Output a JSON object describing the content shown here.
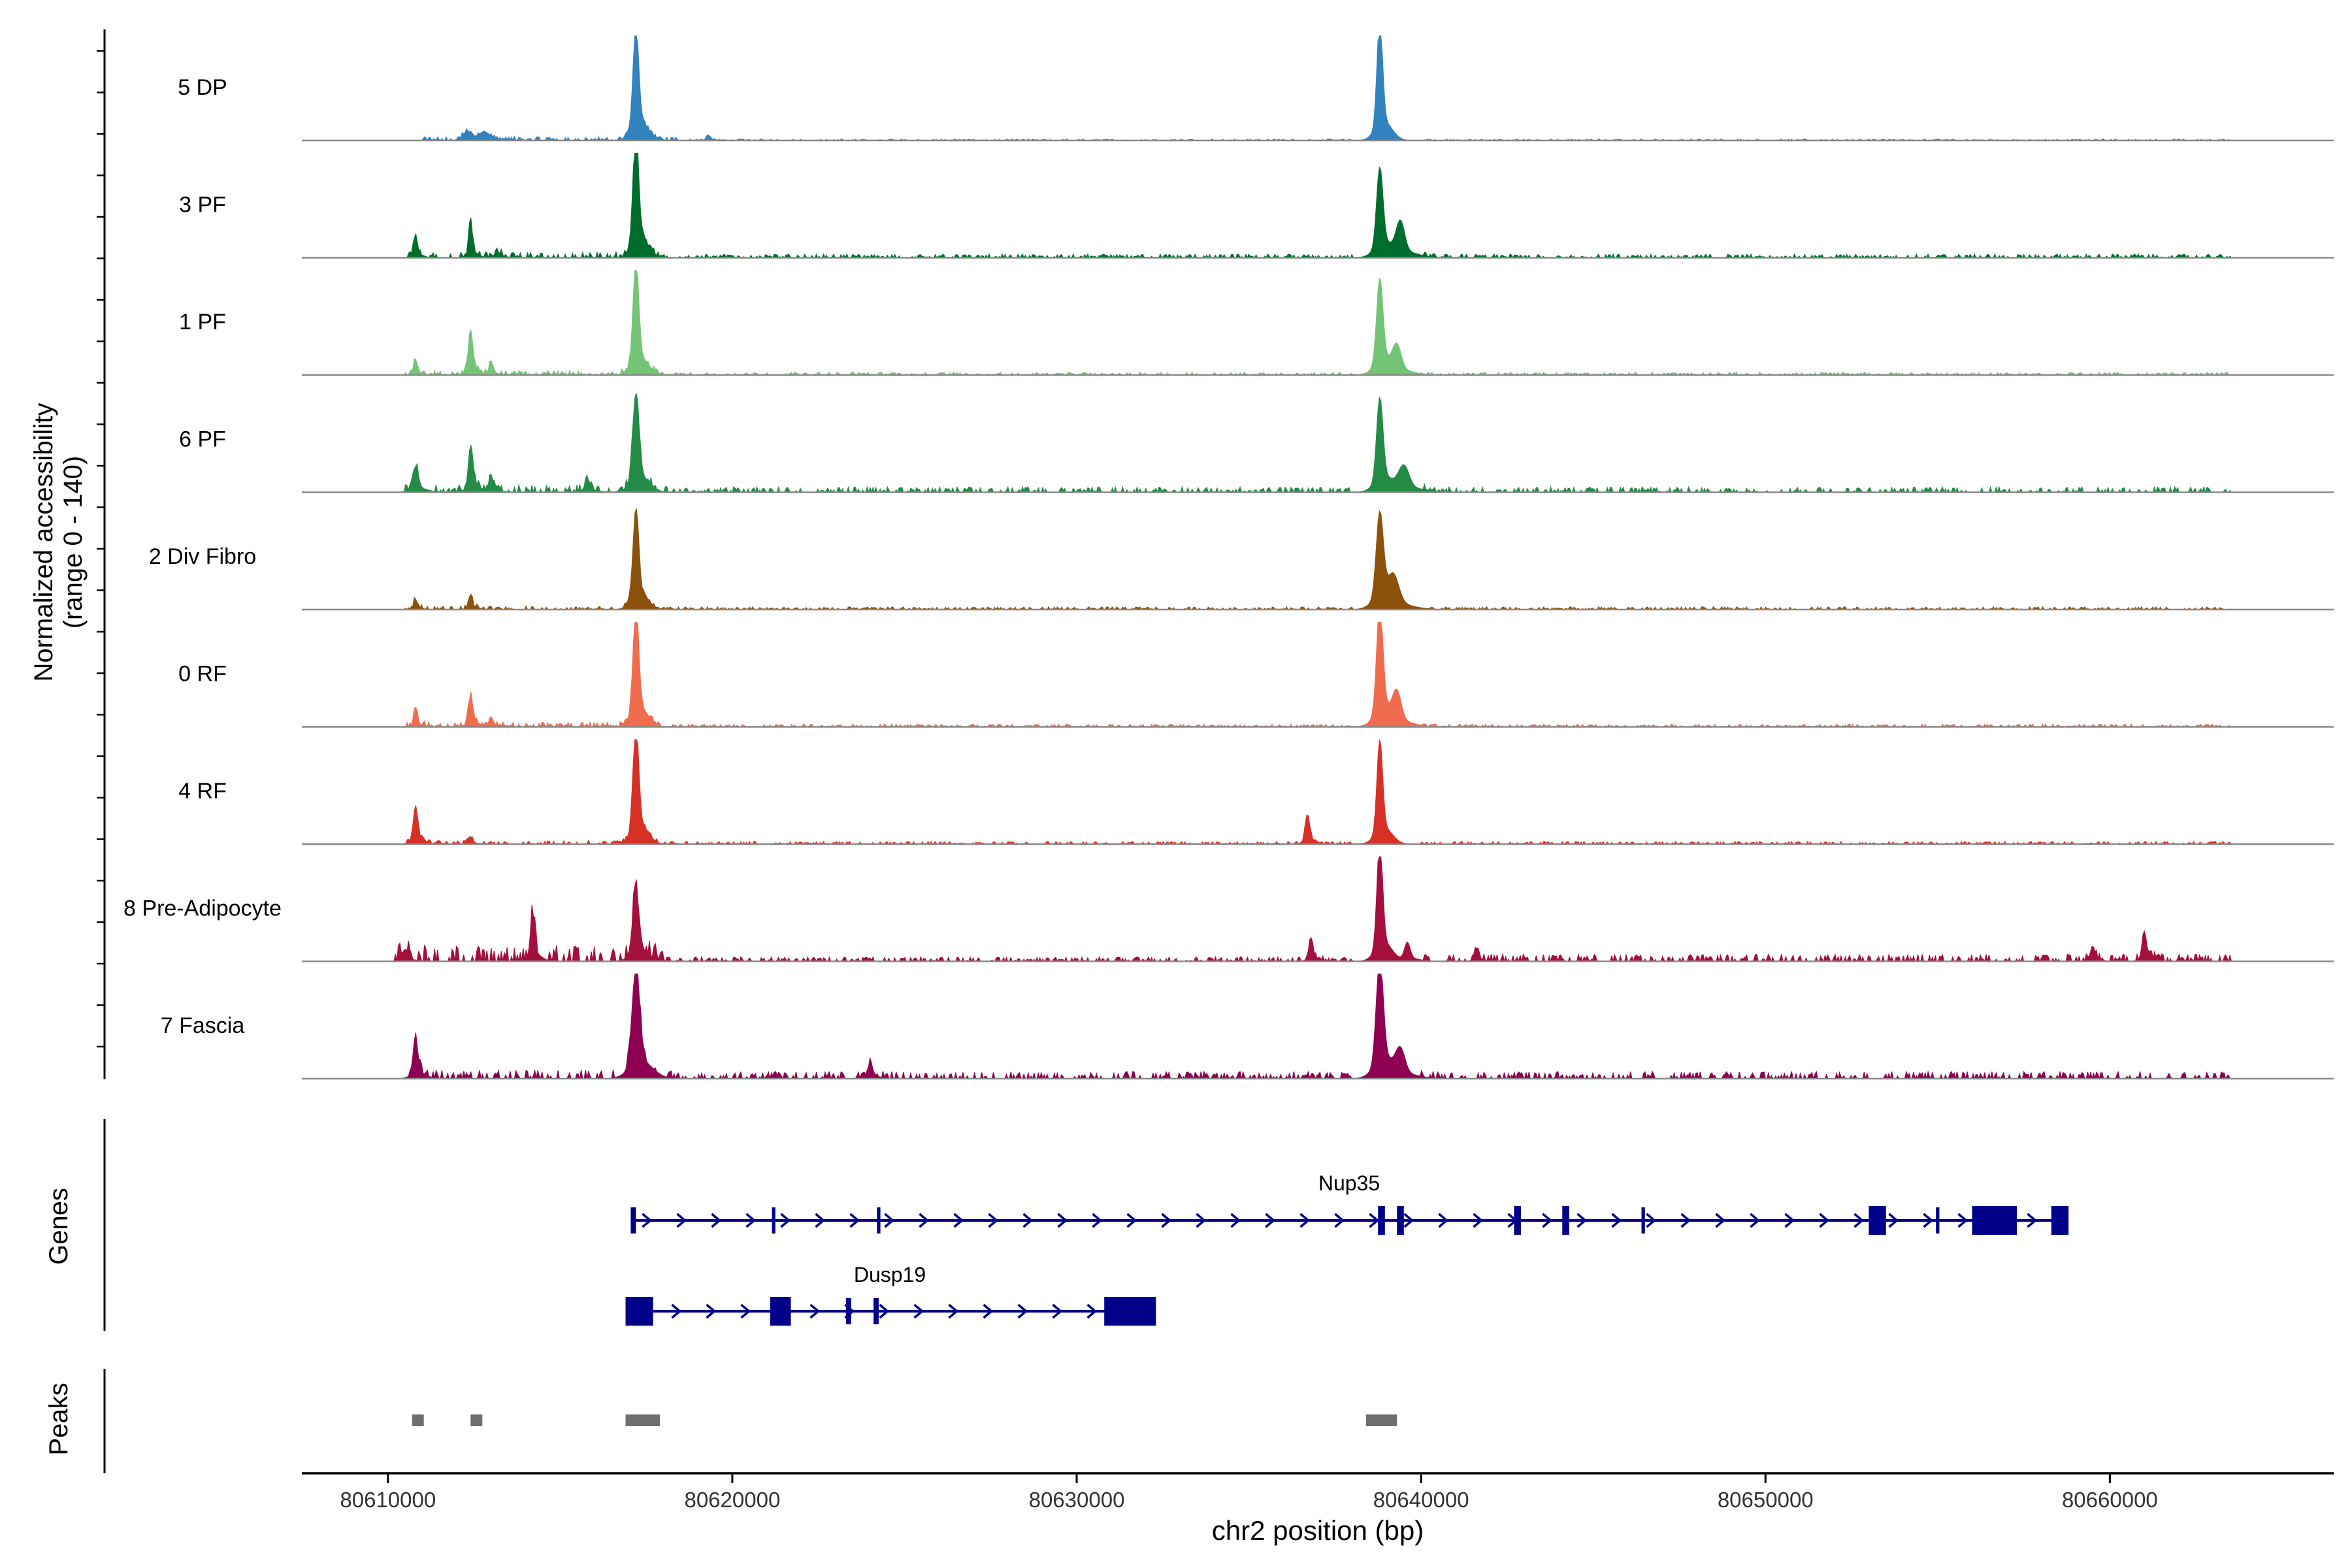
{
  "chart_data": {
    "type": "area",
    "title": "",
    "xlabel": "chr2 position (bp)",
    "ylabel_line1": "Normalized accessibility",
    "ylabel_line2": "(range 0 - 140)",
    "yrange": [
      0,
      140
    ],
    "xlim": [
      80607500,
      80666500
    ],
    "xticks": [
      80610000,
      80620000,
      80630000,
      80640000,
      80650000,
      80660000
    ],
    "xtick_labels": [
      "80610000",
      "80620000",
      "80630000",
      "80640000",
      "80650000",
      "80660000"
    ],
    "tracks": [
      {
        "name": "5 DP",
        "color": "#3182bd",
        "peaks": [
          [
            80612300,
            10,
            120
          ],
          [
            80612800,
            9,
            150
          ],
          [
            80617200,
            135,
            80
          ],
          [
            80619300,
            6,
            50
          ],
          [
            80638800,
            140,
            80
          ]
        ],
        "scatter": [
          [
            80611000,
            80618500,
            4
          ],
          [
            80618500,
            80638000,
            1.5
          ],
          [
            80640000,
            80663500,
            1.5
          ]
        ]
      },
      {
        "name": "3 PF",
        "color": "#006d2c",
        "peaks": [
          [
            80610800,
            28,
            50
          ],
          [
            80612400,
            42,
            50
          ],
          [
            80613200,
            6,
            100
          ],
          [
            80617200,
            145,
            80
          ],
          [
            80638800,
            105,
            90
          ],
          [
            80639400,
            40,
            120
          ]
        ],
        "scatter": [
          [
            80610500,
            80618000,
            6
          ],
          [
            80618000,
            80638000,
            4
          ],
          [
            80640000,
            80663500,
            4
          ]
        ]
      },
      {
        "name": "1 PF",
        "color": "#74c476",
        "peaks": [
          [
            80610800,
            18,
            50
          ],
          [
            80612400,
            52,
            60
          ],
          [
            80613000,
            14,
            60
          ],
          [
            80617200,
            132,
            80
          ],
          [
            80638800,
            112,
            90
          ],
          [
            80639300,
            30,
            120
          ]
        ],
        "scatter": [
          [
            80610500,
            80618000,
            5
          ],
          [
            80618000,
            80638000,
            3
          ],
          [
            80640000,
            80663500,
            3
          ]
        ]
      },
      {
        "name": "6 PF",
        "color": "#238b45",
        "peaks": [
          [
            80610800,
            30,
            80
          ],
          [
            80612400,
            55,
            60
          ],
          [
            80613000,
            16,
            70
          ],
          [
            80615800,
            14,
            80
          ],
          [
            80617200,
            115,
            90
          ],
          [
            80638800,
            110,
            90
          ],
          [
            80639500,
            30,
            150
          ]
        ],
        "scatter": [
          [
            80610500,
            80618000,
            8
          ],
          [
            80618000,
            80638000,
            6
          ],
          [
            80640000,
            80663500,
            6
          ]
        ]
      },
      {
        "name": "2 Div Fibro",
        "color": "#8c510a",
        "peaks": [
          [
            80610800,
            12,
            50
          ],
          [
            80612400,
            18,
            50
          ],
          [
            80617200,
            118,
            80
          ],
          [
            80638800,
            112,
            100
          ],
          [
            80639200,
            30,
            150
          ]
        ],
        "scatter": [
          [
            80610500,
            80618000,
            4
          ],
          [
            80618000,
            80638000,
            3
          ],
          [
            80640000,
            80663500,
            3
          ]
        ]
      },
      {
        "name": "0 RF",
        "color": "#f16c4f",
        "peaks": [
          [
            80610800,
            20,
            50
          ],
          [
            80612400,
            36,
            60
          ],
          [
            80613000,
            10,
            60
          ],
          [
            80617200,
            140,
            80
          ],
          [
            80638800,
            140,
            90
          ],
          [
            80639300,
            35,
            120
          ]
        ],
        "scatter": [
          [
            80610500,
            80618000,
            5
          ],
          [
            80618000,
            80638000,
            3
          ],
          [
            80640000,
            80663500,
            3
          ]
        ]
      },
      {
        "name": "4 RF",
        "color": "#d73027",
        "peaks": [
          [
            80610800,
            45,
            60
          ],
          [
            80612400,
            8,
            60
          ],
          [
            80617200,
            140,
            80
          ],
          [
            80636700,
            35,
            60
          ],
          [
            80638800,
            122,
            80
          ]
        ],
        "scatter": [
          [
            80610500,
            80618000,
            4
          ],
          [
            80618000,
            80638000,
            3
          ],
          [
            80640000,
            80663500,
            3
          ]
        ]
      },
      {
        "name": "8 Pre-Adipocyte",
        "color": "#a50f3c",
        "peaks": [
          [
            80610500,
            14,
            80
          ],
          [
            80614200,
            55,
            60
          ],
          [
            80617200,
            82,
            90
          ],
          [
            80636800,
            25,
            60
          ],
          [
            80638800,
            140,
            80
          ],
          [
            80639600,
            22,
            80
          ],
          [
            80641600,
            15,
            60
          ],
          [
            80659500,
            18,
            60
          ],
          [
            80661000,
            35,
            60
          ]
        ],
        "scatter": [
          [
            80610200,
            80618000,
            18
          ],
          [
            80618000,
            80638000,
            5
          ],
          [
            80640000,
            80663500,
            8
          ]
        ]
      },
      {
        "name": "7 Fascia",
        "color": "#8e0152",
        "peaks": [
          [
            80610800,
            45,
            70
          ],
          [
            80617200,
            128,
            110
          ],
          [
            80624000,
            16,
            80
          ],
          [
            80638800,
            140,
            100
          ],
          [
            80639400,
            30,
            130
          ]
        ],
        "scatter": [
          [
            80610500,
            80618000,
            10
          ],
          [
            80618000,
            80638000,
            8
          ],
          [
            80640000,
            80663500,
            8
          ]
        ]
      }
    ],
    "genes_label": "Genes",
    "peaks_label": "Peaks",
    "genes": [
      {
        "name": "Nup35",
        "start": 80617050,
        "end": 80658800,
        "color": "#00008b",
        "exons": [
          [
            80617050,
            80617200
          ],
          [
            80621150,
            80621250
          ],
          [
            80624200,
            80624300
          ],
          [
            80638750,
            80638950
          ],
          [
            80639300,
            80639500
          ],
          [
            80642700,
            80642900
          ],
          [
            80644100,
            80644300
          ],
          [
            80646400,
            80646500
          ],
          [
            80653000,
            80653500
          ],
          [
            80654950,
            80655050
          ],
          [
            80656000,
            80657300
          ],
          [
            80658300,
            80658800
          ]
        ]
      },
      {
        "name": "Dusp19",
        "start": 80616900,
        "end": 80632300,
        "color": "#00008b",
        "exons": [
          [
            80616900,
            80617700
          ],
          [
            80621100,
            80621700
          ],
          [
            80623300,
            80623450
          ],
          [
            80624100,
            80624250
          ],
          [
            80630800,
            80632300
          ]
        ]
      }
    ],
    "peak_regions": [
      [
        80610700,
        80611000
      ],
      [
        80612400,
        80612700
      ],
      [
        80616900,
        80617900
      ],
      [
        80638400,
        80639300
      ]
    ]
  }
}
